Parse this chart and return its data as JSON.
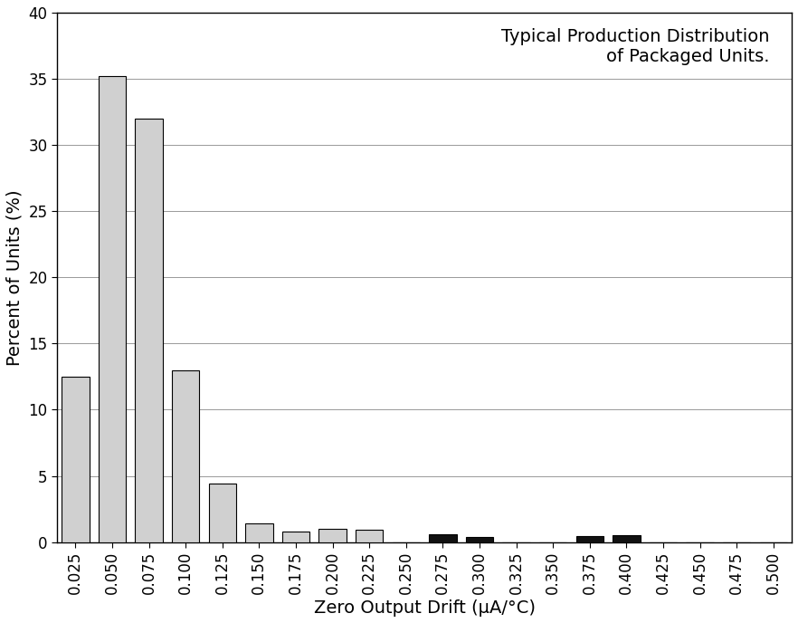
{
  "categories": [
    "0.025",
    "0.050",
    "0.075",
    "0.100",
    "0.125",
    "0.150",
    "0.175",
    "0.200",
    "0.225",
    "0.250",
    "0.275",
    "0.300",
    "0.325",
    "0.350",
    "0.375",
    "0.400",
    "0.425",
    "0.450",
    "0.475",
    "0.500"
  ],
  "values": [
    12.5,
    35.2,
    32.0,
    13.0,
    4.4,
    1.4,
    0.8,
    1.0,
    0.9,
    0.0,
    0.6,
    0.35,
    0.0,
    0.0,
    0.45,
    0.5,
    0.0,
    0.0,
    0.0,
    0.0
  ],
  "bar_colors": [
    "#d0d0d0",
    "#d0d0d0",
    "#d0d0d0",
    "#d0d0d0",
    "#d0d0d0",
    "#d0d0d0",
    "#d0d0d0",
    "#d0d0d0",
    "#d0d0d0",
    "#111111",
    "#111111",
    "#111111",
    "#111111",
    "#111111",
    "#111111",
    "#111111",
    "#111111",
    "#111111",
    "#111111",
    "#111111"
  ],
  "ylabel": "Percent of Units (%)",
  "xlabel": "Zero Output Drift (μA/°C)",
  "annotation_line1": "Typical Production Distribution",
  "annotation_line2": "of Packaged Units.",
  "ylim": [
    0,
    40
  ],
  "yticks": [
    0,
    5,
    10,
    15,
    20,
    25,
    30,
    35,
    40
  ],
  "bar_width": 0.75,
  "edge_color": "#000000",
  "background_color": "#ffffff",
  "grid_color": "#999999",
  "label_fontsize": 14,
  "tick_fontsize": 12,
  "annotation_fontsize": 14
}
